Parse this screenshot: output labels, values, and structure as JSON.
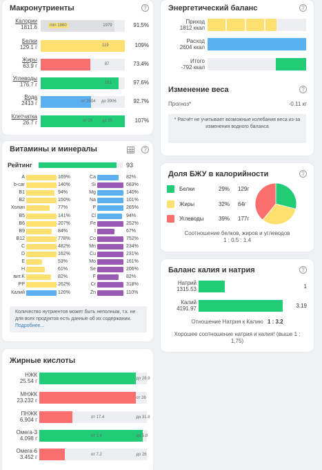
{
  "macro": {
    "title": "Макронутриенты",
    "rows": [
      {
        "name": "Калории",
        "value": "1811.6",
        "fill": 0.88,
        "color": "#dddfe3",
        "marks": [
          {
            "text": "min 1860",
            "pos": 0.09,
            "tag": true
          },
          {
            "text": "1979",
            "pos": 0.74
          }
        ],
        "pct": "91.5%"
      },
      {
        "name": "Белки",
        "value": "129.1 г",
        "fill": 1.0,
        "color": "#fde070",
        "marks": [
          {
            "text": "119",
            "pos": 0.73
          }
        ],
        "pct": "109%"
      },
      {
        "name": "Жиры",
        "value": "63.9 г",
        "fill": 0.59,
        "color": "#fa6e6e",
        "marks": [
          {
            "text": "87",
            "pos": 0.76
          }
        ],
        "pct": "73.4%"
      },
      {
        "name": "Углеводы",
        "value": "176.7 г",
        "fill": 0.93,
        "color": "#22cc77",
        "marks": [
          {
            "text": "181",
            "pos": 0.76
          }
        ],
        "pct": "97.6%"
      },
      {
        "name": "Вода",
        "value": "2413 г",
        "fill": 0.6,
        "color": "#5bb1ef",
        "marks": [
          {
            "text": "от 2604",
            "pos": 0.48
          },
          {
            "text": "до 3906",
            "pos": 0.72
          }
        ],
        "pct": "92.7%"
      },
      {
        "name": "Клетчатка",
        "value": "26.7 г",
        "fill": 1.0,
        "color": "#22cc77",
        "marks": [
          {
            "text": "от 20",
            "pos": 0.5
          },
          {
            "text": "до 25",
            "pos": 0.73
          }
        ],
        "pct": "107%"
      }
    ]
  },
  "energy": {
    "title": "Энергетический баланс",
    "rows": [
      {
        "name": "Приход",
        "value": "1812 ккал",
        "color": "#fde070",
        "fill": 0.7,
        "striped": true
      },
      {
        "name": "Расход",
        "value": "2604 ккал",
        "color": "#5bb1ef",
        "fill": 1.0
      },
      {
        "name": "Итого",
        "value": "-792 ккал",
        "color": "#22cc77",
        "fill": 0.31,
        "right": true
      }
    ]
  },
  "weight": {
    "title": "Изменение веса",
    "forecast_label": "Прогноз*",
    "forecast_value": "-0.11 кг",
    "note": "* Расчёт не учитывает возможные колебания веса из-за изменения водного баланса"
  },
  "vitamins": {
    "title": "Витамины и минералы",
    "rating_label": "Рейтинг",
    "rating_value": "93",
    "rating_fill": 0.93,
    "left": [
      {
        "name": "A",
        "pct": "169%",
        "fill": 1.0,
        "color": "#fde070"
      },
      {
        "name": "b-car",
        "pct": "140%",
        "fill": 1.0,
        "color": "#fde070"
      },
      {
        "name": "B1",
        "pct": "94%",
        "fill": 0.94,
        "color": "#fde070"
      },
      {
        "name": "B2",
        "pct": "150%",
        "fill": 1.0,
        "color": "#fde070"
      },
      {
        "name": "Холин",
        "pct": "77%",
        "fill": 0.77,
        "color": "#fde070"
      },
      {
        "name": "B5",
        "pct": "141%",
        "fill": 1.0,
        "color": "#fde070"
      },
      {
        "name": "B6",
        "pct": "207%",
        "fill": 1.0,
        "color": "#fde070"
      },
      {
        "name": "B9",
        "pct": "84%",
        "fill": 0.84,
        "color": "#fde070"
      },
      {
        "name": "B12",
        "pct": "778%",
        "fill": 1.0,
        "color": "#fde070"
      },
      {
        "name": "C",
        "pct": "482%",
        "fill": 1.0,
        "color": "#fde070"
      },
      {
        "name": "D",
        "pct": "162%",
        "fill": 1.0,
        "color": "#fde070"
      },
      {
        "name": "E",
        "pct": "53%",
        "fill": 0.53,
        "color": "#fde070"
      },
      {
        "name": "H",
        "pct": "61%",
        "fill": 0.61,
        "color": "#fde070"
      },
      {
        "name": "вит.K",
        "pct": "82%",
        "fill": 0.82,
        "color": "#fde070"
      },
      {
        "name": "PP",
        "pct": "262%",
        "fill": 1.0,
        "color": "#fde070"
      },
      {
        "name": "Калий",
        "pct": "120%",
        "fill": 1.0,
        "color": "#5bb1ef"
      }
    ],
    "right": [
      {
        "name": "Ca",
        "pct": "82%",
        "fill": 0.82,
        "color": "#5bb1ef"
      },
      {
        "name": "Si",
        "pct": "683%",
        "fill": 1.0,
        "color": "#9b59b6"
      },
      {
        "name": "Mg",
        "pct": "140%",
        "fill": 1.0,
        "color": "#5bb1ef"
      },
      {
        "name": "Na",
        "pct": "101%",
        "fill": 1.0,
        "color": "#5bb1ef"
      },
      {
        "name": "P",
        "pct": "265%",
        "fill": 1.0,
        "color": "#5bb1ef"
      },
      {
        "name": "Cl",
        "pct": "94%",
        "fill": 0.94,
        "color": "#5bb1ef"
      },
      {
        "name": "Fe",
        "pct": "252%",
        "fill": 1.0,
        "color": "#9b59b6"
      },
      {
        "name": "I",
        "pct": "67%",
        "fill": 0.67,
        "color": "#9b59b6"
      },
      {
        "name": "Co",
        "pct": "752%",
        "fill": 1.0,
        "color": "#9b59b6"
      },
      {
        "name": "Mn",
        "pct": "234%",
        "fill": 1.0,
        "color": "#9b59b6"
      },
      {
        "name": "Cu",
        "pct": "231%",
        "fill": 1.0,
        "color": "#9b59b6"
      },
      {
        "name": "Mo",
        "pct": "161%",
        "fill": 1.0,
        "color": "#9b59b6"
      },
      {
        "name": "Se",
        "pct": "206%",
        "fill": 1.0,
        "color": "#9b59b6"
      },
      {
        "name": "F",
        "pct": "82%",
        "fill": 0.82,
        "color": "#9b59b6"
      },
      {
        "name": "Cr",
        "pct": "318%",
        "fill": 1.0,
        "color": "#9b59b6"
      },
      {
        "name": "Zn",
        "pct": "110%",
        "fill": 1.0,
        "color": "#9b59b6"
      }
    ],
    "note": "Количество нутриентов может быть неполным, т.к. не для всех продуктов есть данные об их содержании.",
    "note_link": "Подробнее..."
  },
  "bju": {
    "title": "Доля БЖУ в калорийности",
    "rows": [
      {
        "name": "Белки",
        "pct": "29%",
        "grams": "129г",
        "color": "#22cc77",
        "share": 29
      },
      {
        "name": "Жиры",
        "pct": "32%",
        "grams": "64г",
        "color": "#fde070",
        "share": 32
      },
      {
        "name": "Углеводы",
        "pct": "39%",
        "grams": "177г",
        "color": "#fa6e6e",
        "share": 39
      }
    ],
    "ratio_text": "Соотношение белков, жиров и углеводов",
    "ratio_value": "1 : 0.5 : 1.4"
  },
  "kna": {
    "title": "Баланс калия и натрия",
    "rows": [
      {
        "name": "Натрий",
        "value": "1315.53",
        "fill": 0.31,
        "num": "1"
      },
      {
        "name": "Калий",
        "value": "4191.97",
        "fill": 1.0,
        "num": "3.19"
      }
    ],
    "ratio_label": "Отношение Натрия к Калию",
    "ratio_value": "1 : 3.2",
    "comment": "Хорошее соотношение натрия и калия! (выше 1 : 1,75)"
  },
  "fat": {
    "title": "Жирные кислоты",
    "rows": [
      {
        "name": "НЖК",
        "value": "25.54 г",
        "fill": 0.9,
        "color": "#22cc77",
        "marks": [
          {
            "text": "до 28.9",
            "pos": 0.92
          }
        ]
      },
      {
        "name": "МНЖК",
        "value": "23.232 г",
        "fill": 0.9,
        "color": "#fa6e6e",
        "marks": [
          {
            "text": "от 26",
            "pos": 0.92
          }
        ]
      },
      {
        "name": "ПНЖК",
        "value": "6.904 г",
        "fill": 0.31,
        "color": "#fa6e6e",
        "marks": [
          {
            "text": "от 17.4",
            "pos": 0.5
          },
          {
            "text": "до 31.8",
            "pos": 0.92
          }
        ]
      },
      {
        "name": "Омега-3",
        "value": "4.098 г",
        "fill": 0.96,
        "color": "#22cc77",
        "marks": [
          {
            "text": "от 1.4",
            "pos": 0.5
          },
          {
            "text": "до 5.8",
            "pos": 0.92
          }
        ]
      },
      {
        "name": "Омега-6",
        "value": "3.452 г",
        "fill": 0.24,
        "color": "#fa6e6e",
        "marks": [
          {
            "text": "от 7.2",
            "pos": 0.5
          },
          {
            "text": "до 26",
            "pos": 0.92
          }
        ]
      }
    ]
  }
}
